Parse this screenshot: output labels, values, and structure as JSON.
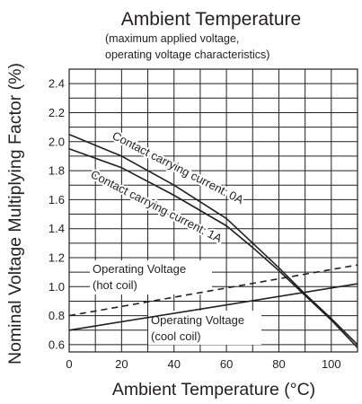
{
  "chart_data": {
    "type": "line",
    "title": "Ambient Temperature",
    "subtitle_lines": [
      "(maximum applied voltage,",
      "operating voltage characteristics)"
    ],
    "xlabel": "Ambient Temperature (°C)",
    "ylabel": "Nominal Voltage Multiplying Factor (%)",
    "xlim": [
      0,
      110
    ],
    "ylim": [
      0.55,
      2.5
    ],
    "x_ticks": [
      0,
      20,
      40,
      60,
      80,
      100
    ],
    "y_ticks": [
      0.6,
      0.8,
      1.0,
      1.2,
      1.4,
      1.6,
      1.8,
      2.0,
      2.2,
      2.4
    ],
    "x_tick_labels": [
      "0",
      "20",
      "40",
      "60",
      "80",
      "100"
    ],
    "y_tick_labels": [
      "0.6",
      "0.8",
      "1.0",
      "1.2",
      "1.4",
      "1.6",
      "1.8",
      "2.0",
      "2.2",
      "2.4"
    ],
    "grid": true,
    "legend": "none",
    "series": [
      {
        "label_lines": [
          "Contact carrying current: 0A"
        ],
        "style": "solid",
        "points": [
          [
            0,
            2.05
          ],
          [
            20,
            1.9
          ],
          [
            40,
            1.7
          ],
          [
            60,
            1.47
          ],
          [
            70,
            1.3
          ],
          [
            80,
            1.13
          ],
          [
            90,
            0.95
          ],
          [
            100,
            0.78
          ],
          [
            110,
            0.6
          ]
        ]
      },
      {
        "label_lines": [
          "Contact carrying current: 1A"
        ],
        "style": "solid",
        "points": [
          [
            0,
            1.95
          ],
          [
            20,
            1.82
          ],
          [
            40,
            1.63
          ],
          [
            60,
            1.42
          ],
          [
            70,
            1.27
          ],
          [
            80,
            1.11
          ],
          [
            90,
            0.94
          ],
          [
            100,
            0.77
          ],
          [
            110,
            0.58
          ]
        ]
      },
      {
        "label_lines": [
          "Operating Voltage",
          "(hot coil)"
        ],
        "style": "dashed",
        "points": [
          [
            0,
            0.8
          ],
          [
            110,
            1.15
          ]
        ]
      },
      {
        "label_lines": [
          "Operating Voltage",
          "(cool coil)"
        ],
        "style": "solid",
        "points": [
          [
            0,
            0.7
          ],
          [
            110,
            1.02
          ]
        ]
      }
    ]
  }
}
